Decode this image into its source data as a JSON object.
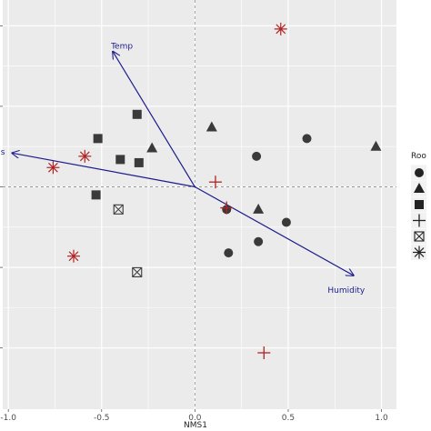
{
  "chart_data": {
    "type": "scatter",
    "title": "",
    "xlabel": "NMS1",
    "ylabel": "",
    "xlim": [
      -1.03,
      1.08
    ],
    "ylim": [
      -1.38,
      1.16
    ],
    "x_ticks": [
      -1.0,
      -0.5,
      0.0,
      0.5,
      1.0
    ],
    "x_tick_labels": [
      "-1.0",
      "-0.5",
      "0.0",
      "0.5",
      "1.0"
    ],
    "y_ticks": [
      1.0,
      0.5,
      0.0,
      -0.5,
      -1.0
    ],
    "grid": true,
    "reference_lines": {
      "x": 0,
      "y": 0
    },
    "colors": {
      "panel": "#ebebeb",
      "grid": "#ffffff",
      "points_dark": "#3a3a3a",
      "points_red": "#b22222",
      "vectors": "#1c1c8c"
    },
    "legend": {
      "placement": "right",
      "title": "Roo",
      "shapes": [
        "circle",
        "triangle",
        "square",
        "plus",
        "square-cross",
        "asterisk"
      ]
    },
    "series": [
      {
        "shape": "circle",
        "color": "#3a3a3a",
        "points": [
          [
            0.6,
            0.3
          ],
          [
            0.33,
            0.19
          ],
          [
            0.17,
            -0.14
          ],
          [
            0.49,
            -0.22
          ],
          [
            0.34,
            -0.34
          ],
          [
            0.18,
            -0.41
          ]
        ]
      },
      {
        "shape": "triangle",
        "color": "#3a3a3a",
        "points": [
          [
            0.97,
            0.25
          ],
          [
            0.09,
            0.37
          ],
          [
            -0.23,
            0.24
          ],
          [
            0.34,
            -0.14
          ]
        ]
      },
      {
        "shape": "square",
        "color": "#3a3a3a",
        "points": [
          [
            -0.31,
            0.45
          ],
          [
            -0.52,
            0.3
          ],
          [
            -0.4,
            0.17
          ],
          [
            -0.3,
            0.15
          ],
          [
            -0.53,
            -0.05
          ]
        ]
      },
      {
        "shape": "plus",
        "color": "#b22222",
        "points": [
          [
            0.11,
            0.03
          ],
          [
            0.17,
            -0.13
          ],
          [
            0.37,
            -1.03
          ]
        ]
      },
      {
        "shape": "square-cross",
        "color": "#3a3a3a",
        "points": [
          [
            -0.41,
            -0.14
          ],
          [
            -0.31,
            -0.53
          ]
        ]
      },
      {
        "shape": "asterisk",
        "color": "#b22222",
        "points": [
          [
            0.46,
            0.98
          ],
          [
            -0.59,
            0.19
          ],
          [
            -0.76,
            0.12
          ],
          [
            -0.65,
            -0.43
          ]
        ]
      }
    ],
    "vectors": [
      {
        "label": "Temp",
        "x": -0.44,
        "y": 0.84
      },
      {
        "label": "Dens",
        "x": -0.98,
        "y": 0.21
      },
      {
        "label": "Humidity",
        "x": 0.85,
        "y": -0.55
      }
    ]
  }
}
